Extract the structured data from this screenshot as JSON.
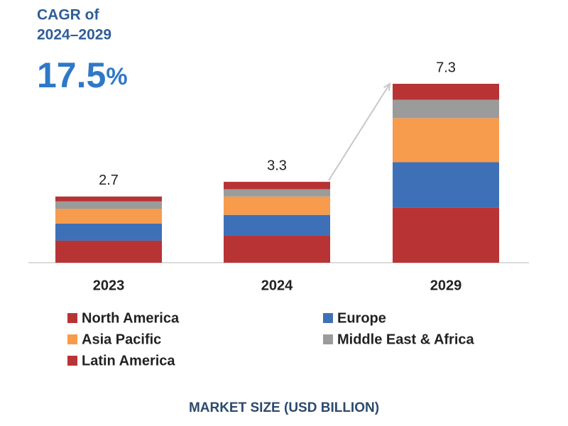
{
  "chart_data": {
    "type": "stacked_bar",
    "annotations": {
      "cagr_title_1": "CAGR of",
      "cagr_title_2": "2024–2029",
      "cagr_value": "17.5",
      "cagr_unit": "%"
    },
    "xlabel": "MARKET SIZE (USD BILLION)",
    "categories": [
      "2023",
      "2024",
      "2029"
    ],
    "total_labels": [
      "2.7",
      "3.3",
      "7.3"
    ],
    "series": [
      {
        "name": "North America",
        "color": "#b83333",
        "values": [
          0.9,
          1.1,
          2.25
        ]
      },
      {
        "name": "Europe",
        "color": "#3e70b8",
        "values": [
          0.7,
          0.85,
          1.85
        ]
      },
      {
        "name": "Asia Pacific",
        "color": "#f79b4c",
        "values": [
          0.6,
          0.75,
          1.8
        ]
      },
      {
        "name": "Middle East & Africa",
        "color": "#9b9b9b",
        "values": [
          0.3,
          0.3,
          0.75
        ]
      },
      {
        "name": "Latin America",
        "color": "#b83333",
        "values": [
          0.2,
          0.3,
          0.65
        ]
      }
    ]
  }
}
